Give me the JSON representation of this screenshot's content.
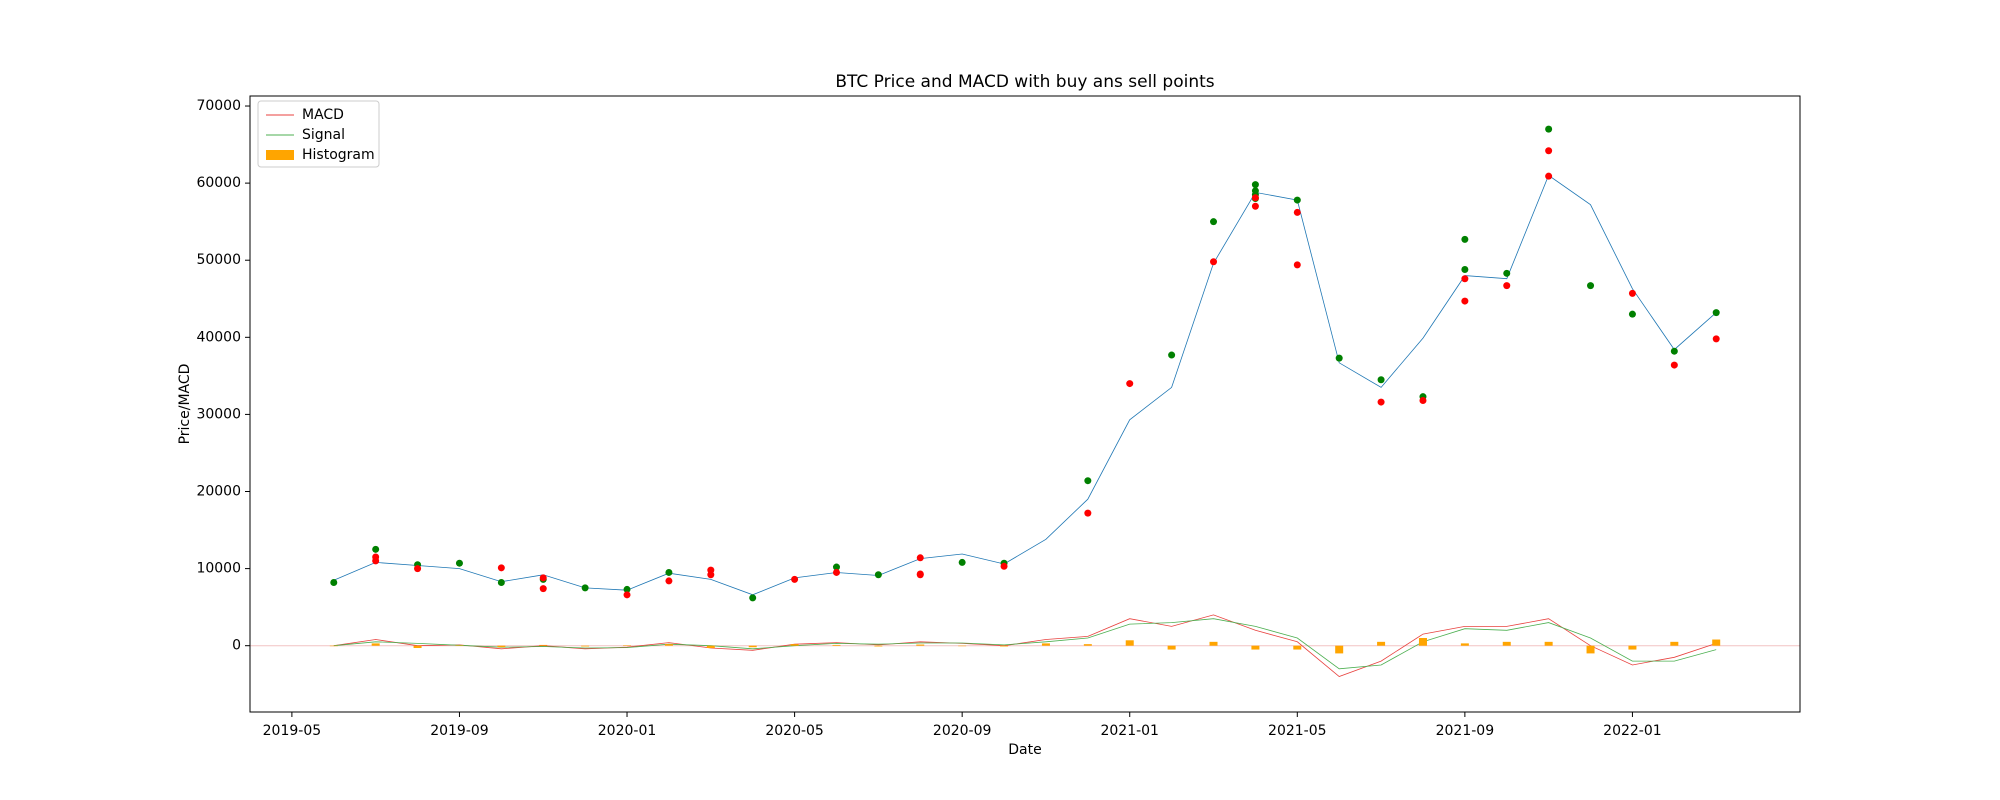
{
  "chart_data": {
    "type": "line",
    "title": "BTC Price and MACD with buy ans sell points",
    "x_label": "Date",
    "y_label": "Price/MACD",
    "x": [
      "2019-06",
      "2019-07",
      "2019-08",
      "2019-09",
      "2019-10",
      "2019-11",
      "2019-12",
      "2020-01",
      "2020-02",
      "2020-03",
      "2020-04",
      "2020-05",
      "2020-06",
      "2020-07",
      "2020-08",
      "2020-09",
      "2020-10",
      "2020-11",
      "2020-12",
      "2021-01",
      "2021-02",
      "2021-03",
      "2021-04",
      "2021-05",
      "2021-06",
      "2021-07",
      "2021-08",
      "2021-09",
      "2021-10",
      "2021-11",
      "2021-12",
      "2022-01",
      "2022-02",
      "2022-03"
    ],
    "price": {
      "color": "#1f77b4",
      "values": [
        8500,
        10800,
        10400,
        10000,
        8300,
        9200,
        7500,
        7200,
        9400,
        8600,
        6600,
        8800,
        9500,
        9100,
        11300,
        11900,
        10600,
        13800,
        19000,
        29300,
        33500,
        49600,
        58800,
        57800,
        36700,
        33500,
        39900,
        48000,
        47600,
        61000,
        57200,
        46300,
        38400,
        43200
      ]
    },
    "series": [
      {
        "name": "MACD",
        "color": "#e8423f",
        "style": "line",
        "values": [
          0,
          800,
          0,
          100,
          -400,
          0,
          -400,
          -200,
          400,
          -300,
          -600,
          200,
          400,
          100,
          500,
          300,
          0,
          800,
          1200,
          3500,
          2500,
          4000,
          2000,
          500,
          -4000,
          -2000,
          1500,
          2500,
          2500,
          3500,
          0,
          -2500,
          -1500,
          300
        ]
      },
      {
        "name": "Signal",
        "color": "#4caf50",
        "style": "line",
        "values": [
          0,
          500,
          300,
          50,
          -200,
          -100,
          -300,
          -250,
          200,
          0,
          -400,
          0,
          300,
          200,
          350,
          350,
          100,
          500,
          1000,
          2800,
          3000,
          3500,
          2500,
          1000,
          -3000,
          -2500,
          500,
          2200,
          2000,
          3000,
          1000,
          -2000,
          -2000,
          -500
        ]
      },
      {
        "name": "Histogram",
        "color": "orange",
        "style": "bar",
        "values": [
          0,
          300,
          -300,
          50,
          -200,
          100,
          -100,
          50,
          200,
          -300,
          -200,
          200,
          100,
          -100,
          150,
          -50,
          -100,
          300,
          200,
          700,
          -500,
          500,
          -500,
          -500,
          -1000,
          500,
          1000,
          300,
          500,
          500,
          -1000,
          -500,
          500,
          800
        ]
      }
    ],
    "points": [
      {
        "color": "green",
        "x": [
          "2019-06",
          "2019-07",
          "2019-08",
          "2019-09",
          "2019-10",
          "2019-11",
          "2019-12",
          "2020-01",
          "2020-02",
          "2020-04",
          "2020-06",
          "2020-07",
          "2020-09",
          "2020-10",
          "2020-12",
          "2021-02",
          "2021-03",
          "2021-04",
          "2021-04",
          "2021-04",
          "2021-04",
          "2021-05",
          "2021-06",
          "2021-07",
          "2021-08",
          "2021-09",
          "2021-09",
          "2021-10",
          "2021-11",
          "2021-12",
          "2022-01",
          "2022-02",
          "2022-03"
        ],
        "values": [
          8200,
          12500,
          10500,
          10700,
          8200,
          8600,
          7500,
          7300,
          9500,
          6200,
          10200,
          9200,
          10800,
          10700,
          21400,
          37700,
          55000,
          58500,
          59000,
          58000,
          59800,
          57800,
          37300,
          34500,
          32300,
          48800,
          52700,
          48300,
          67000,
          46700,
          43000,
          38200,
          43200
        ]
      },
      {
        "color": "red",
        "x": [
          "2019-07",
          "2019-07",
          "2019-08",
          "2019-10",
          "2019-11",
          "2019-11",
          "2020-01",
          "2020-02",
          "2020-03",
          "2020-03",
          "2020-05",
          "2020-06",
          "2020-08",
          "2020-08",
          "2020-08",
          "2020-10",
          "2020-12",
          "2021-01",
          "2021-03",
          "2021-04",
          "2021-04",
          "2021-05",
          "2021-05",
          "2021-07",
          "2021-08",
          "2021-09",
          "2021-09",
          "2021-10",
          "2021-11",
          "2021-11",
          "2022-01",
          "2022-02",
          "2022-03"
        ],
        "values": [
          11000,
          11500,
          10000,
          10100,
          7400,
          8800,
          6600,
          8400,
          9200,
          9800,
          8600,
          9500,
          9200,
          9300,
          11400,
          10300,
          17200,
          34000,
          49800,
          58100,
          57000,
          56200,
          49400,
          31600,
          31800,
          44700,
          47600,
          46700,
          60900,
          64200,
          45700,
          36400,
          39800
        ]
      }
    ],
    "xlim": [
      "2019-04",
      "2022-05"
    ],
    "xticks": [
      "2019-05",
      "2019-09",
      "2020-01",
      "2020-05",
      "2020-09",
      "2021-01",
      "2021-05",
      "2021-09",
      "2022-01"
    ],
    "ylim": [
      -8600,
      71300
    ],
    "yticks": [
      0,
      10000,
      20000,
      30000,
      40000,
      50000,
      60000,
      70000
    ],
    "hline": {
      "value": 0,
      "color": "#f2c4c4"
    },
    "legend": "upper left"
  }
}
